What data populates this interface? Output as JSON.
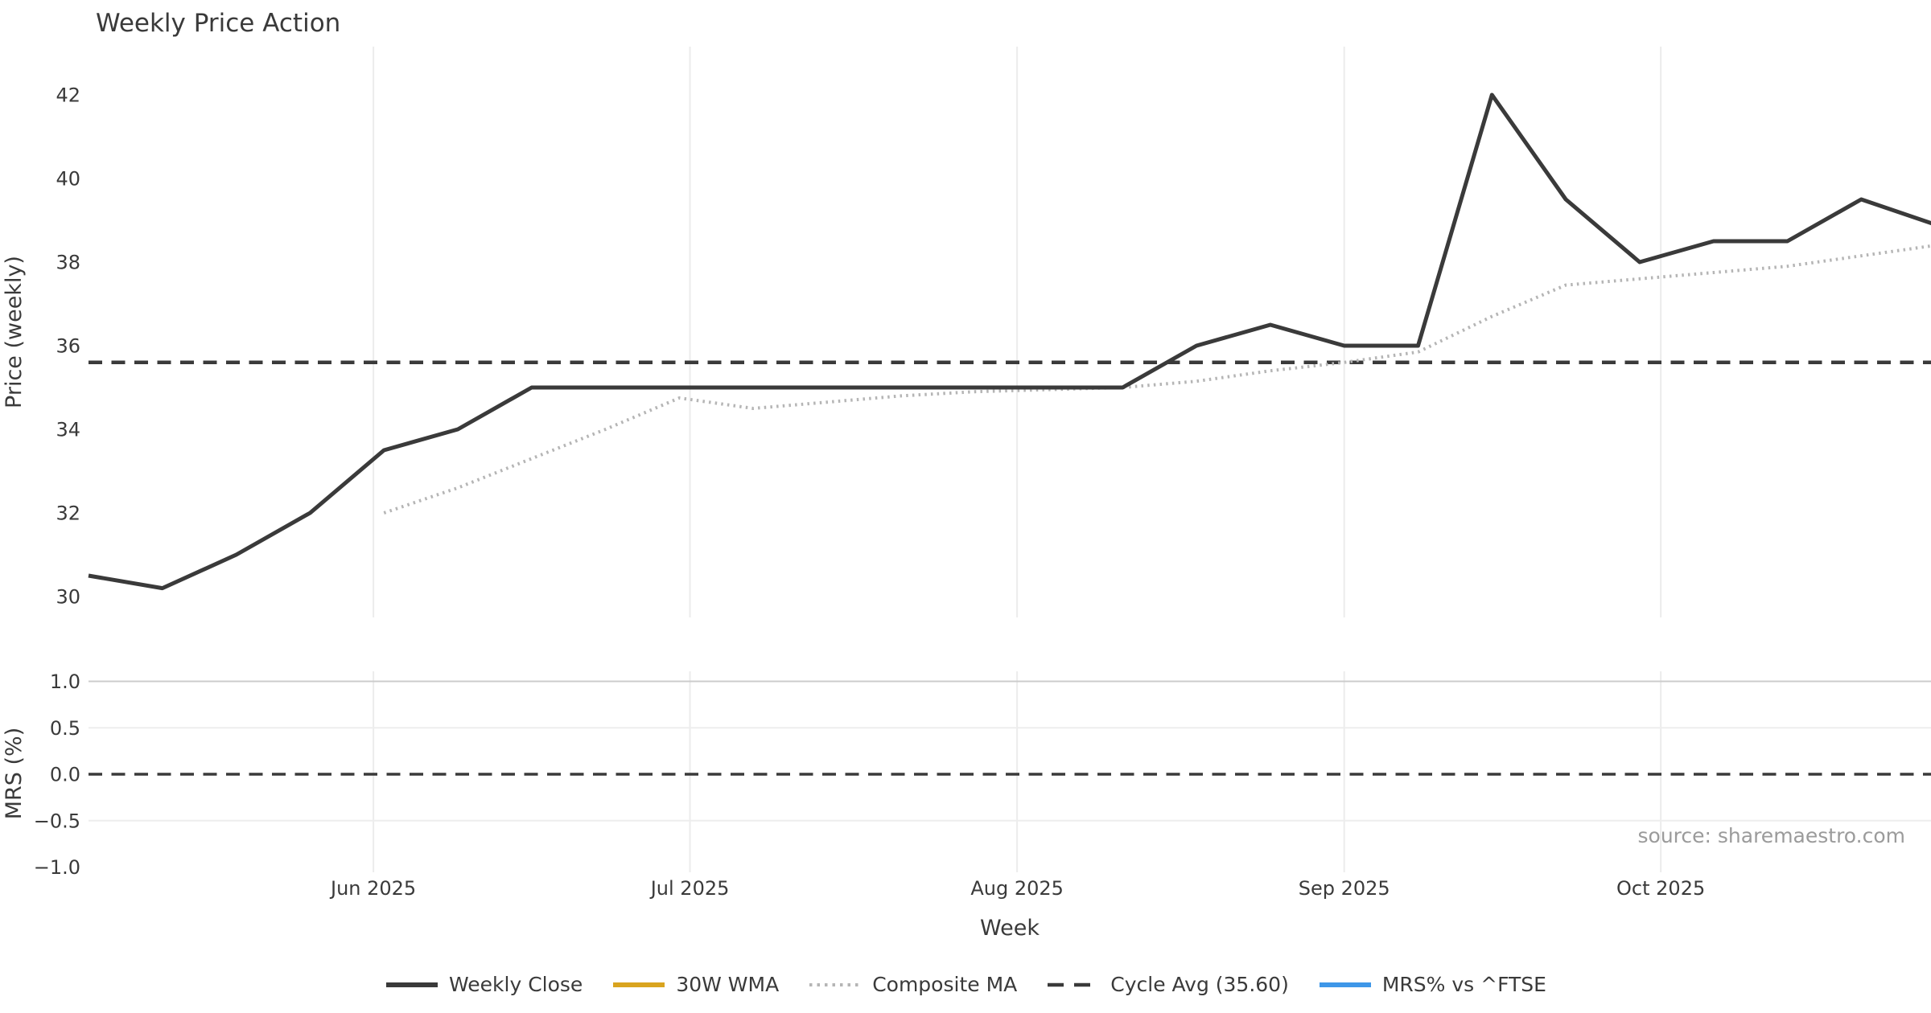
{
  "title": "Weekly Price Action",
  "source_note": "source: sharemaestro.com",
  "colors": {
    "text": "#3a3a3a",
    "weekly_close": "#3a3a3a",
    "wma_30w": "#d9a41f",
    "composite_ma": "#b5b5b5",
    "cycle_avg": "#3a3a3a",
    "mrs_line": "#3e97e8",
    "grid_vertical": "#ececec",
    "grid_horizontal_major": "#cccccc",
    "grid_horizontal_minor": "#ededed",
    "source_text": "#9b9b9b"
  },
  "legend": [
    {
      "label": "Weekly Close",
      "color": "#3a3a3a",
      "style": "solid"
    },
    {
      "label": "30W WMA",
      "color": "#d9a41f",
      "style": "solid"
    },
    {
      "label": "Composite MA",
      "color": "#b5b5b5",
      "style": "dotted"
    },
    {
      "label": "Cycle Avg (35.60)",
      "color": "#3a3a3a",
      "style": "dashed"
    },
    {
      "label": "MRS% vs ^FTSE",
      "color": "#3e97e8",
      "style": "solid"
    }
  ],
  "chart_data": {
    "type": "line",
    "title": "Weekly Price Action",
    "xlabel": "Week",
    "x_ticks": [
      {
        "date": "2025-06-01",
        "label": "Jun 2025"
      },
      {
        "date": "2025-07-01",
        "label": "Jul 2025"
      },
      {
        "date": "2025-08-01",
        "label": "Aug 2025"
      },
      {
        "date": "2025-09-01",
        "label": "Sep 2025"
      },
      {
        "date": "2025-10-01",
        "label": "Oct 2025"
      }
    ],
    "panels": [
      {
        "ylabel": "Price (weekly)",
        "ylim": [
          29.4,
          43.2
        ],
        "yticks": [
          30,
          32,
          34,
          36,
          38,
          40,
          42
        ],
        "ytick_labels": [
          "30",
          "32",
          "34",
          "36",
          "38",
          "40",
          "42"
        ],
        "grid": "vertical-only",
        "series": [
          {
            "name": "Cycle Avg (35.60)",
            "style": "dashed",
            "color": "#3a3a3a",
            "hline": 35.6
          },
          {
            "name": "Composite MA",
            "style": "dotted",
            "color": "#b5b5b5",
            "x": [
              "2025-06-02",
              "2025-06-09",
              "2025-06-16",
              "2025-06-23",
              "2025-06-30",
              "2025-07-07",
              "2025-07-14",
              "2025-07-21",
              "2025-07-28",
              "2025-08-04",
              "2025-08-11",
              "2025-08-18",
              "2025-08-25",
              "2025-09-01",
              "2025-09-08",
              "2025-09-15",
              "2025-09-22",
              "2025-09-29",
              "2025-10-06",
              "2025-10-13",
              "2025-10-20",
              "2025-10-27"
            ],
            "values": [
              32.0,
              32.6,
              33.3,
              34.0,
              34.75,
              34.5,
              34.65,
              34.8,
              34.9,
              34.95,
              35.0,
              35.15,
              35.4,
              35.6,
              35.85,
              36.7,
              37.45,
              37.6,
              37.75,
              37.9,
              38.15,
              38.4
            ]
          },
          {
            "name": "Weekly Close",
            "style": "solid",
            "color": "#3a3a3a",
            "x": [
              "2025-05-05",
              "2025-05-12",
              "2025-05-19",
              "2025-05-26",
              "2025-06-02",
              "2025-06-09",
              "2025-06-16",
              "2025-06-23",
              "2025-06-30",
              "2025-07-07",
              "2025-07-14",
              "2025-07-21",
              "2025-07-28",
              "2025-08-04",
              "2025-08-11",
              "2025-08-18",
              "2025-08-25",
              "2025-09-01",
              "2025-09-08",
              "2025-09-15",
              "2025-09-22",
              "2025-09-29",
              "2025-10-06",
              "2025-10-13",
              "2025-10-20",
              "2025-10-27"
            ],
            "values": [
              30.5,
              30.2,
              31.0,
              32.0,
              33.5,
              34.0,
              35.0,
              35.0,
              35.0,
              35.0,
              35.0,
              35.0,
              35.0,
              35.0,
              35.0,
              36.0,
              36.5,
              36.0,
              36.0,
              42.0,
              39.5,
              38.0,
              38.5,
              38.5,
              39.5,
              38.9
            ]
          },
          {
            "name": "30W WMA",
            "style": "solid",
            "color": "#d9a41f",
            "x": [],
            "values": [],
            "note": "legend entry only; no visible line in plot"
          }
        ]
      },
      {
        "ylabel": "MRS (%)",
        "ylim": [
          -1.15,
          1.15
        ],
        "yticks": [
          1.0,
          0.5,
          0.0,
          -0.5,
          -1.0
        ],
        "ytick_labels": [
          "1.0",
          "0.5",
          "0.0",
          "−0.5",
          "−1.0"
        ],
        "series": [
          {
            "name": "Zero reference",
            "style": "dashed",
            "color": "#3a3a3a",
            "hline": 0.0
          },
          {
            "name": "MRS% vs ^FTSE",
            "style": "solid",
            "color": "#3e97e8",
            "x": [],
            "values": [],
            "note": "legend entry only; no visible line in plot"
          }
        ]
      }
    ]
  }
}
